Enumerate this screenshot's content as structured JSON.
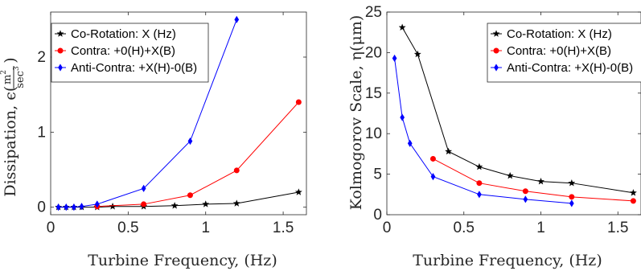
{
  "chart_data": [
    {
      "type": "line",
      "xlabel": "Turbine Frequency, (Hz)",
      "ylabel": "Dissipation, ϵ( m²/sec³ )",
      "ylabel_main": "Dissipation, ϵ(",
      "ylabel_num": "m",
      "ylabel_num_sup": "2",
      "ylabel_den": "sec",
      "ylabel_den_sup": "3",
      "ylabel_close": ")",
      "xlim": [
        0,
        1.65
      ],
      "ylim": [
        -0.1,
        2.6
      ],
      "xticks": [
        0,
        0.5,
        1,
        1.5
      ],
      "xtick_labels": [
        "0",
        "0.5",
        "1",
        "1.5"
      ],
      "yticks": [
        0,
        1,
        2
      ],
      "ytick_labels": [
        "0",
        "1",
        "2"
      ],
      "grid": false,
      "legend_position": "top-left",
      "series": [
        {
          "name": "Co-Rotation:  X (Hz)",
          "color": "#000000",
          "marker": "star",
          "x": [
            0.05,
            0.1,
            0.15,
            0.2,
            0.3,
            0.4,
            0.6,
            0.8,
            1.0,
            1.2,
            1.6
          ],
          "y": [
            0.0,
            0.0,
            0.0,
            0.0,
            0.0,
            0.01,
            0.01,
            0.02,
            0.04,
            0.05,
            0.2
          ]
        },
        {
          "name": "Contra: +0(H)+X(B)",
          "color": "#ff0000",
          "marker": "circle",
          "x": [
            0.3,
            0.6,
            0.9,
            1.2,
            1.6
          ],
          "y": [
            0.01,
            0.04,
            0.16,
            0.49,
            1.4
          ]
        },
        {
          "name": "Anti-Contra: +X(H)-0(B)",
          "color": "#0000ff",
          "marker": "diamond",
          "x": [
            0.05,
            0.1,
            0.15,
            0.2,
            0.3,
            0.6,
            0.9,
            1.2
          ],
          "y": [
            0.0,
            0.0,
            0.0,
            0.01,
            0.04,
            0.25,
            0.88,
            2.5
          ]
        }
      ]
    },
    {
      "type": "line",
      "xlabel": "Turbine Frequency, (Hz)",
      "ylabel": "Kolmogorov Scale, η(μm)",
      "xlim": [
        0,
        1.65
      ],
      "ylim": [
        0,
        25
      ],
      "xticks": [
        0,
        0.5,
        1,
        1.5
      ],
      "xtick_labels": [
        "0",
        "0.5",
        "1",
        "1.5"
      ],
      "yticks": [
        0,
        5,
        10,
        15,
        20,
        25
      ],
      "ytick_labels": [
        "0",
        "5",
        "10",
        "15",
        "20",
        "25"
      ],
      "grid": false,
      "legend_position": "top-right",
      "series": [
        {
          "name": "Co-Rotation:  X (Hz)",
          "color": "#000000",
          "marker": "star",
          "x": [
            0.1,
            0.2,
            0.4,
            0.6,
            0.8,
            1.0,
            1.2,
            1.6
          ],
          "y": [
            23.1,
            19.8,
            7.8,
            5.9,
            4.8,
            4.1,
            3.9,
            2.7
          ]
        },
        {
          "name": "Contra: +0(H)+X(B)",
          "color": "#ff0000",
          "marker": "circle",
          "x": [
            0.3,
            0.6,
            0.9,
            1.2,
            1.6
          ],
          "y": [
            6.9,
            3.9,
            2.9,
            2.2,
            1.7
          ]
        },
        {
          "name": "Anti-Contra: +X(H)-0(B)",
          "color": "#0000ff",
          "marker": "diamond",
          "x": [
            0.05,
            0.1,
            0.15,
            0.3,
            0.6,
            0.9,
            1.2
          ],
          "y": [
            19.3,
            12.0,
            8.8,
            4.7,
            2.5,
            1.9,
            1.4
          ]
        }
      ]
    }
  ]
}
